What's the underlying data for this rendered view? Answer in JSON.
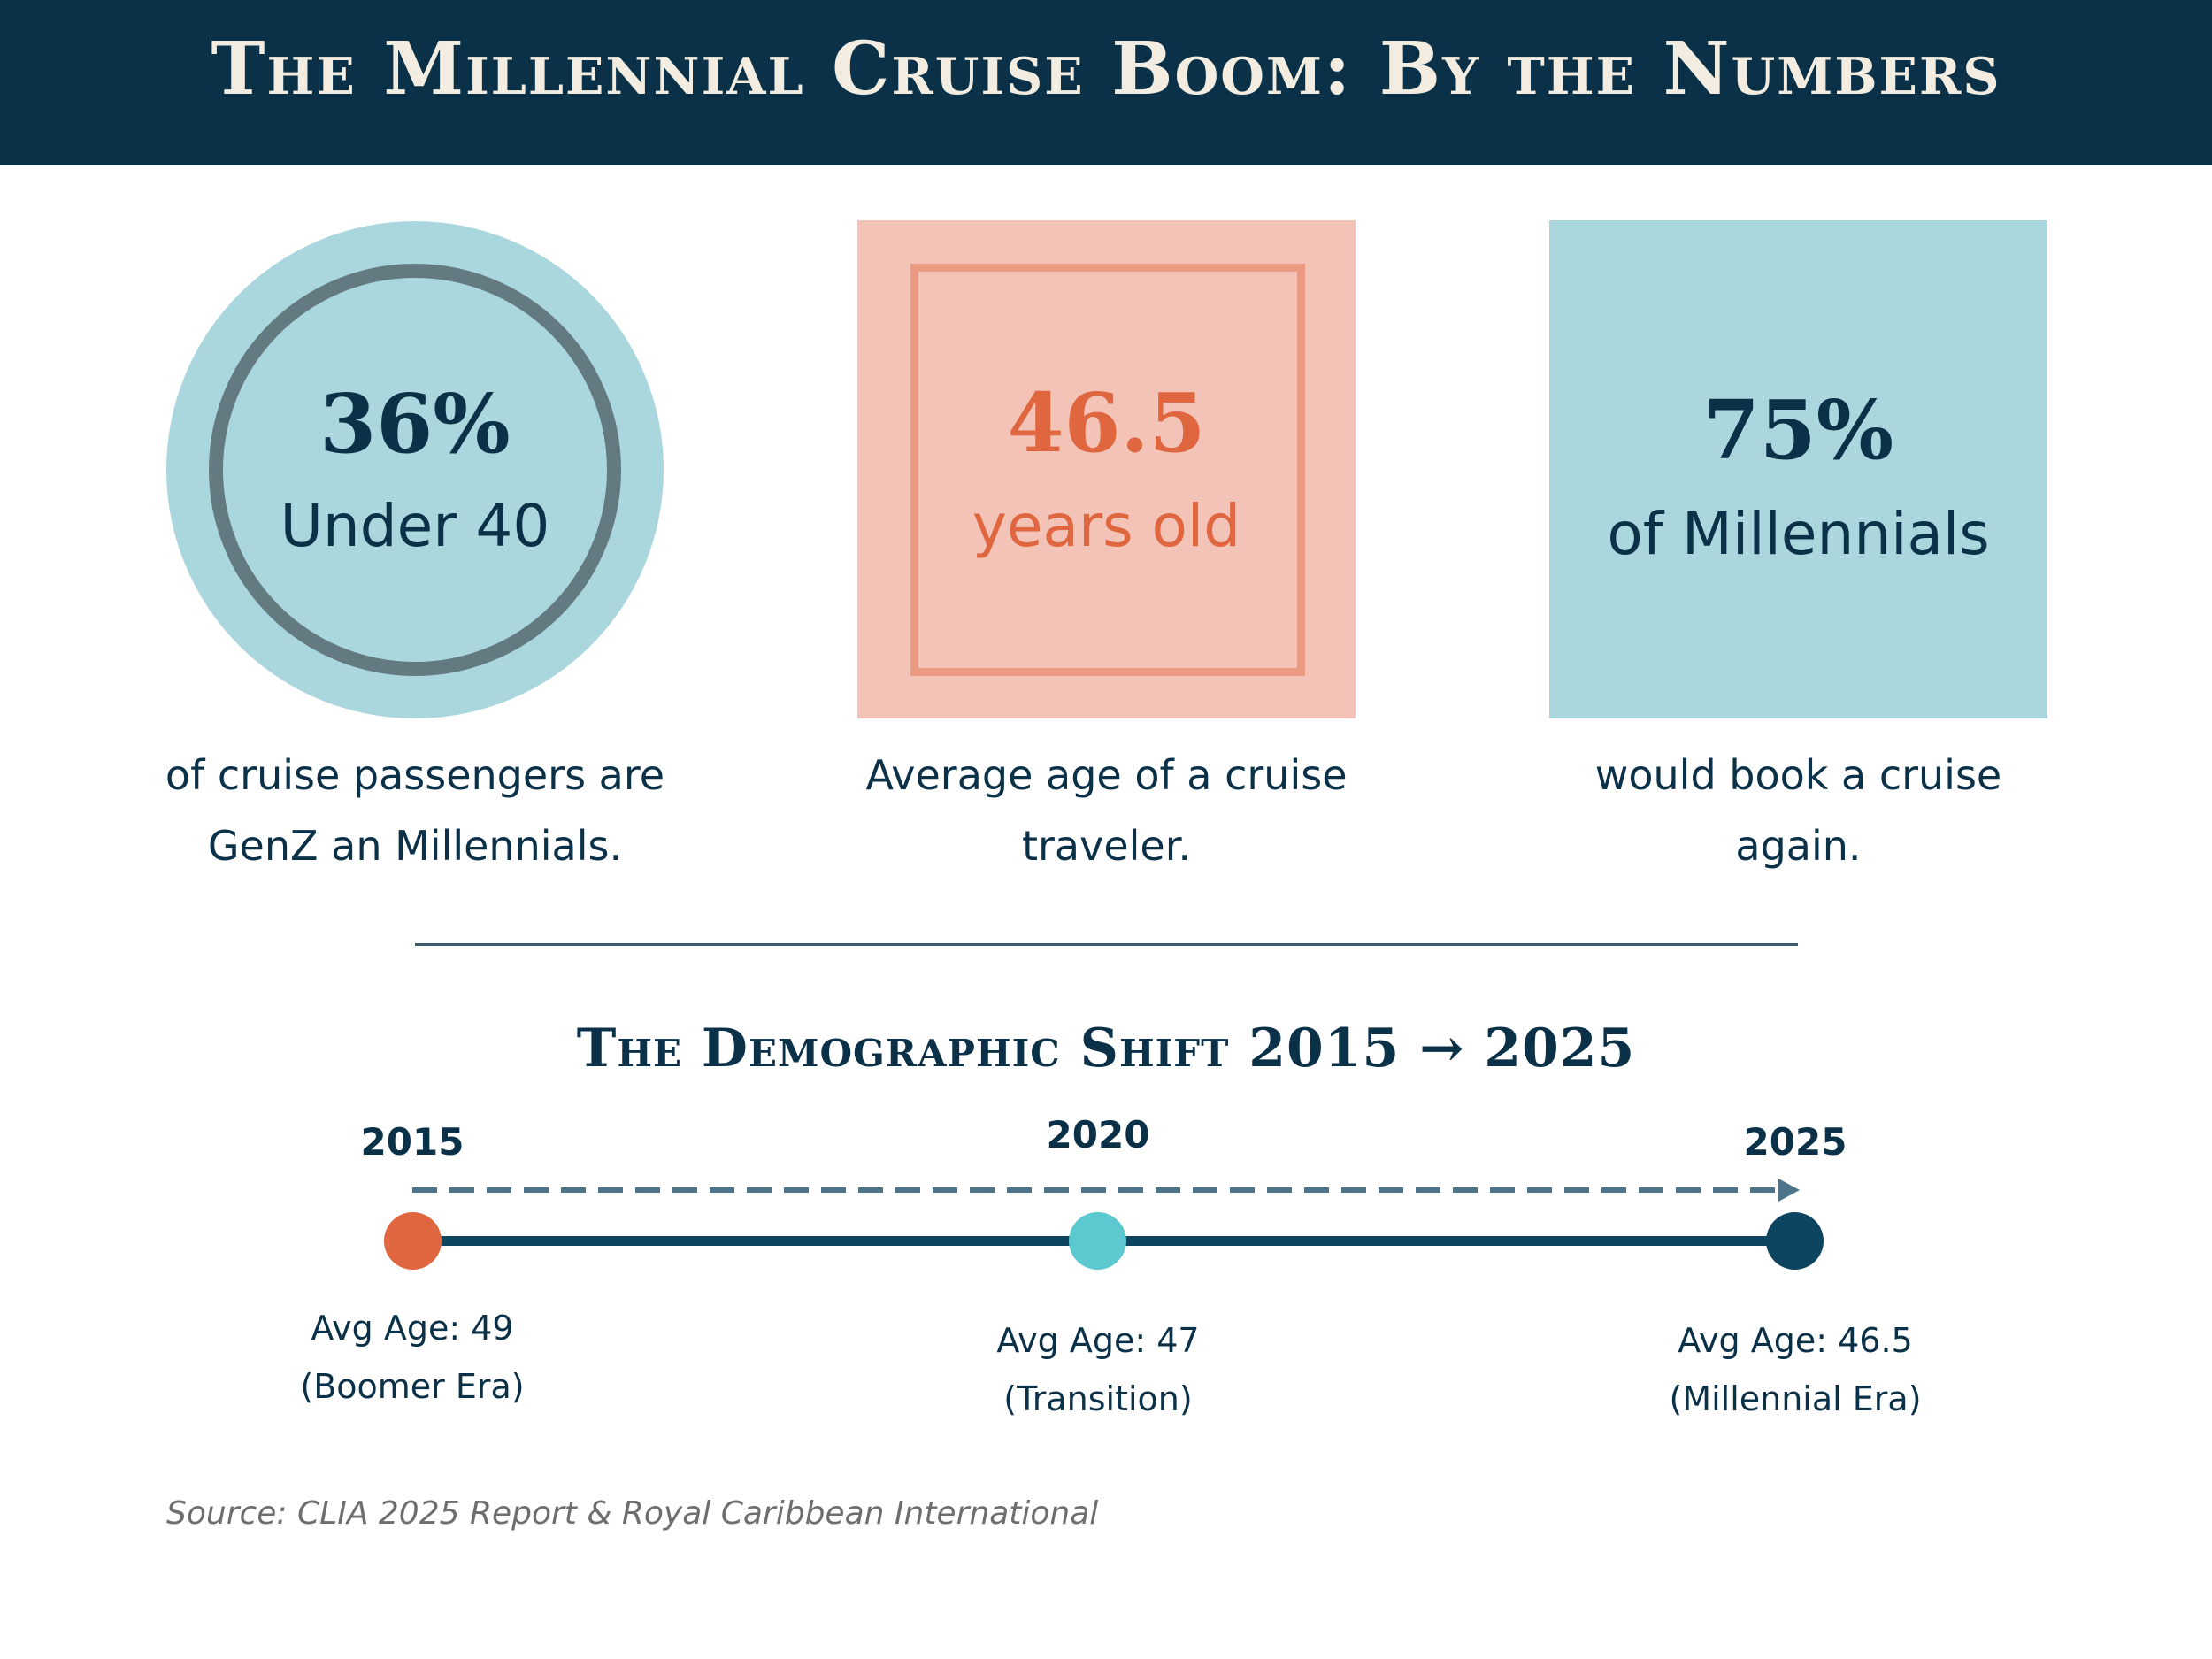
{
  "header": {
    "title": "The Millennial Cruise Boom: By the Numbers"
  },
  "stats": [
    {
      "value": "36%",
      "label": "Under 40",
      "description": "of cruise passengers are GenZ an Millennials.",
      "shape": "circle"
    },
    {
      "value": "46.5",
      "label": "years old",
      "description": "Average age of a cruise traveler.",
      "shape": "framed-square"
    },
    {
      "value": "75%",
      "label": "of Millennials",
      "description": "would book a cruise again.",
      "shape": "square"
    }
  ],
  "timeline": {
    "title": "The Demographic Shift 2015 → 2025",
    "points": [
      {
        "year": "2015",
        "avg_age": "Avg Age: 49",
        "era": "(Boomer Era)"
      },
      {
        "year": "2020",
        "avg_age": "Avg Age: 47",
        "era": "(Transition)"
      },
      {
        "year": "2025",
        "avg_age": "Avg Age: 46.5",
        "era": "(Millennial Era)"
      }
    ]
  },
  "source": "Source: CLIA 2025 Report & Royal Caribbean International",
  "colors": {
    "navy": "#0b3148",
    "teal_light": "#aad6dd",
    "salmon_light": "#f2c3b6",
    "salmon_accent": "#e0663f",
    "dot_2015": "#e0663f",
    "dot_2020": "#5cc8d0",
    "dot_2025": "#0d4460"
  }
}
